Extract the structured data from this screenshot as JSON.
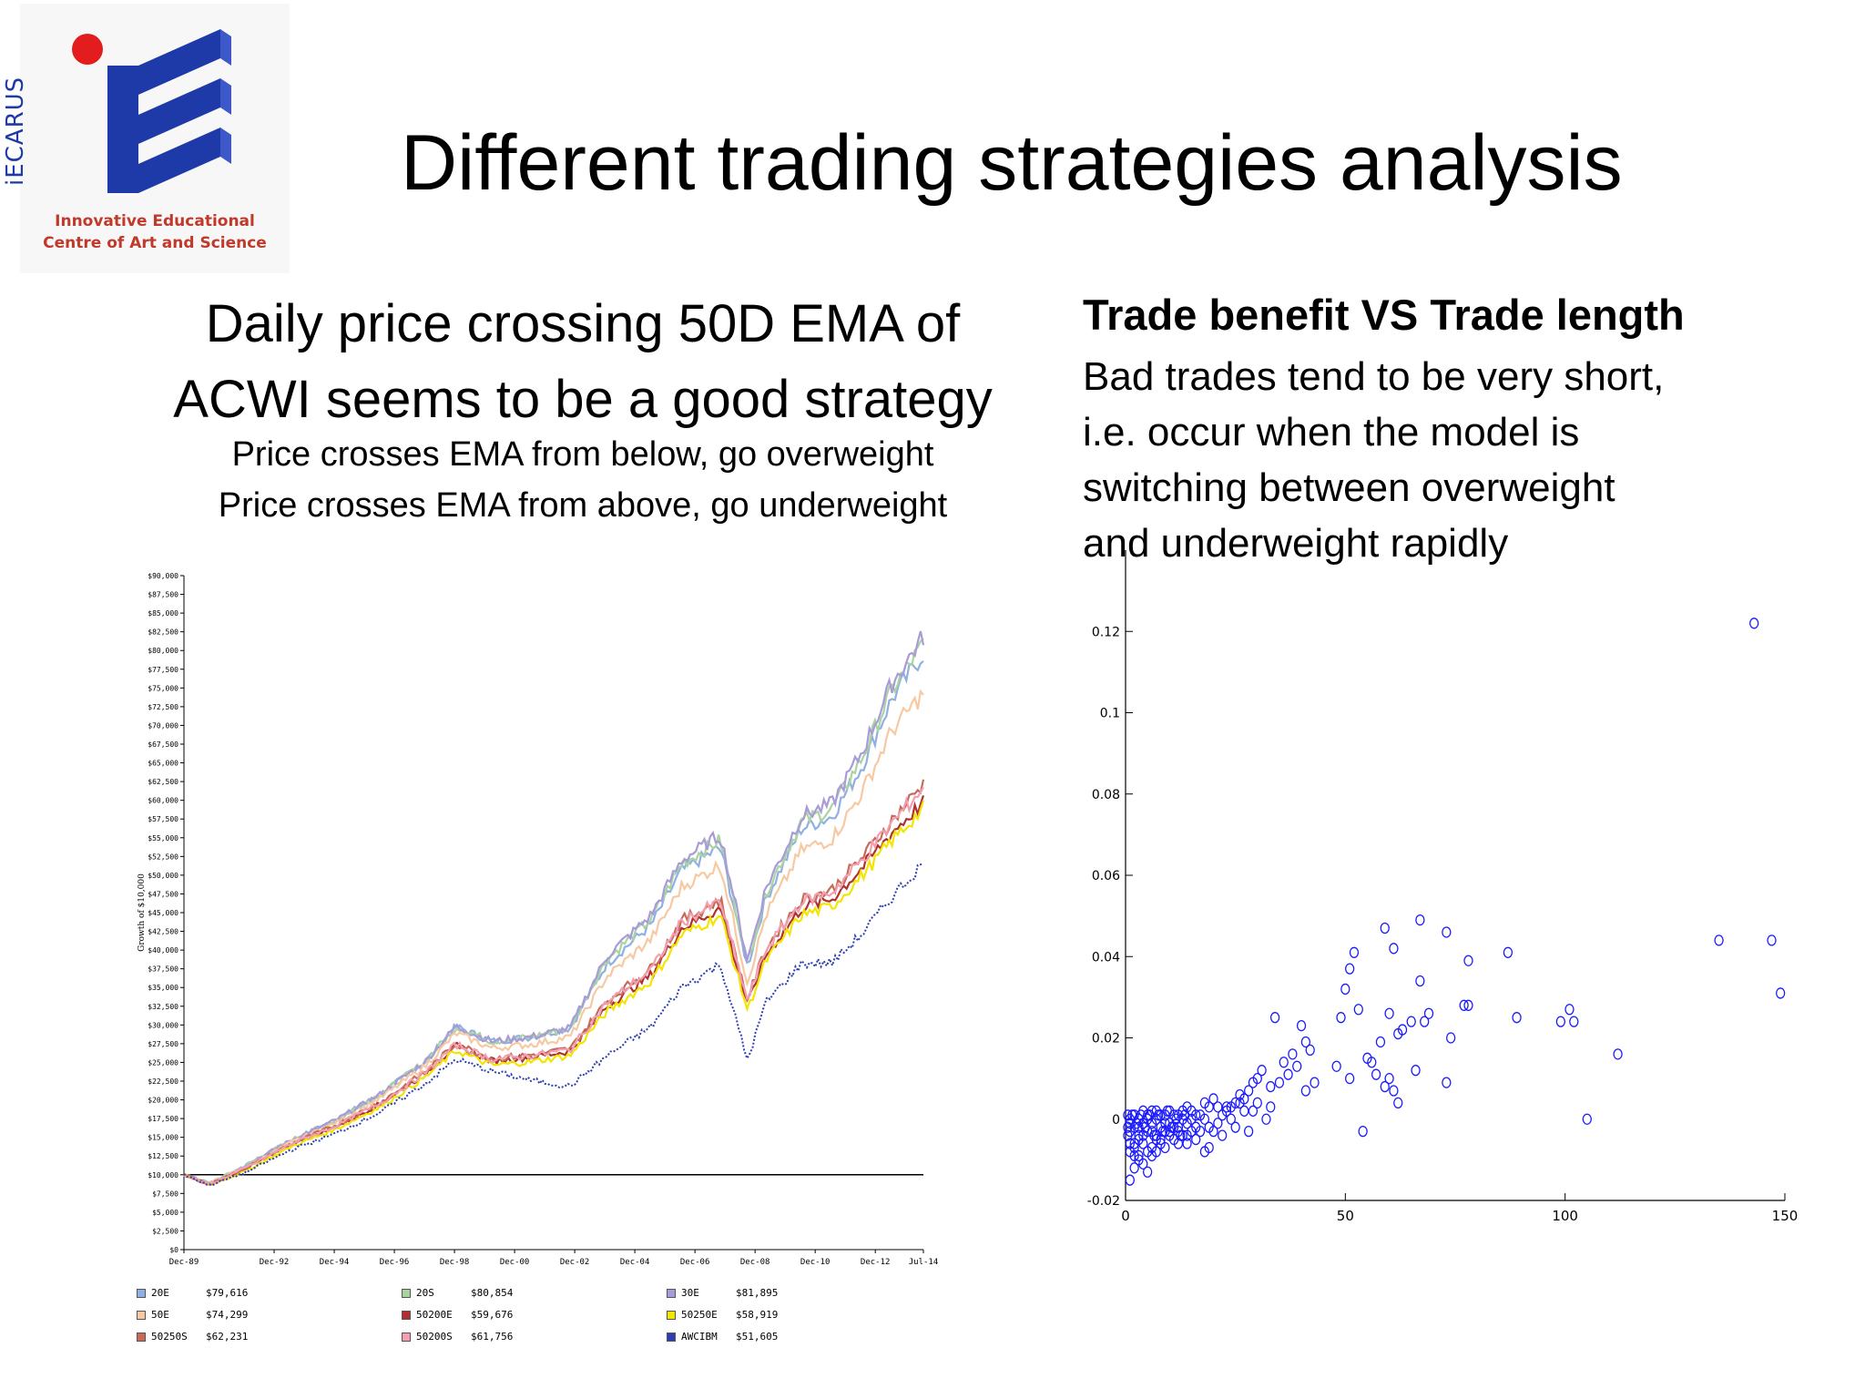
{
  "logo": {
    "word": "iECARUS",
    "line1": "Innovative Educational",
    "line2": "Centre of Art and Science"
  },
  "title": "Different trading strategies analysis",
  "left": {
    "heading_line1": "Daily price crossing 50D EMA of",
    "heading_line2": "ACWI seems to be a good strategy",
    "rule1": "Price crosses EMA from below, go overweight",
    "rule2": "Price crosses EMA from above, go underweight"
  },
  "right": {
    "heading": "Trade benefit VS Trade length",
    "body_lines": [
      "Bad trades tend to be very short,",
      "i.e. occur when the model is",
      "switching between overweight",
      "and underweight rapidly"
    ]
  },
  "colors": {
    "logo_blue": "#1e3aa8",
    "logo_red": "#c0392b",
    "scatter_marker": "#1a1aff"
  },
  "chart_data": [
    {
      "type": "line",
      "ylabel": "Growth of $10,000",
      "ylim": [
        0,
        90000
      ],
      "y_ticks": [
        "$0",
        "$2,500",
        "$5,000",
        "$7,500",
        "$10,000",
        "$12,500",
        "$15,000",
        "$17,500",
        "$20,000",
        "$22,500",
        "$25,000",
        "$27,500",
        "$30,000",
        "$32,500",
        "$35,000",
        "$37,500",
        "$40,000",
        "$42,500",
        "$45,000",
        "$47,500",
        "$50,000",
        "$52,500",
        "$55,000",
        "$57,500",
        "$60,000",
        "$62,500",
        "$65,000",
        "$67,500",
        "$70,000",
        "$72,500",
        "$75,000",
        "$77,500",
        "$80,000",
        "$82,500",
        "$85,000",
        "$87,500",
        "$90,000"
      ],
      "x_ticks": [
        "Dec-89",
        "Dec-92",
        "Dec-94",
        "Dec-96",
        "Dec-98",
        "Dec-00",
        "Dec-02",
        "Dec-04",
        "Dec-06",
        "Dec-08",
        "Dec-10",
        "Dec-12",
        "Jul-14"
      ],
      "x_tick_years": [
        1989.95,
        1992.95,
        1994.95,
        1996.95,
        1998.95,
        2000.95,
        2002.95,
        2004.95,
        2006.95,
        2008.95,
        2010.95,
        2012.95,
        2014.55
      ],
      "baseline": 10000,
      "anchor_years": [
        1989.95,
        1990.8,
        1992.0,
        1993.5,
        1995.0,
        1996.5,
        1998.0,
        1999.0,
        2000.2,
        2001.5,
        2002.8,
        2004.0,
        2005.5,
        2006.5,
        2007.8,
        2008.7,
        2009.3,
        2010.5,
        2011.5,
        2012.5,
        2013.5,
        2014.55
      ],
      "series": [
        {
          "name": "20E",
          "final": "$79,616",
          "color": "#8fb0e0",
          "values": [
            10000,
            8900,
            11200,
            14600,
            17300,
            20800,
            25200,
            29800,
            27800,
            28400,
            29600,
            38100,
            43400,
            50600,
            53700,
            37800,
            46800,
            56300,
            57800,
            64500,
            73500,
            79616
          ]
        },
        {
          "name": "20S",
          "final": "$80,854",
          "color": "#a9d4a0",
          "values": [
            10000,
            8900,
            11200,
            14600,
            17300,
            20800,
            25200,
            29800,
            27800,
            28400,
            29600,
            38700,
            44200,
            51500,
            54700,
            38200,
            47600,
            57200,
            58800,
            65600,
            74700,
            80854
          ]
        },
        {
          "name": "30E",
          "final": "$81,895",
          "color": "#a99ad8",
          "values": [
            10000,
            8900,
            11200,
            14600,
            17300,
            20800,
            25200,
            29800,
            27800,
            28400,
            29600,
            39100,
            44700,
            52000,
            55400,
            38600,
            48200,
            57900,
            59500,
            66400,
            75600,
            81895
          ]
        },
        {
          "name": "50E",
          "final": "$74,299",
          "color": "#f7c9a3",
          "values": [
            10000,
            8800,
            11000,
            14300,
            16900,
            20300,
            24600,
            28900,
            26900,
            27400,
            28400,
            36400,
            41500,
            48400,
            51400,
            35600,
            44600,
            53400,
            54800,
            61000,
            69300,
            74299
          ]
        },
        {
          "name": "50200E",
          "final": "$59,676",
          "color": "#b03030",
          "values": [
            10000,
            8700,
            10800,
            14000,
            16400,
            19500,
            23600,
            27200,
            25200,
            25700,
            26500,
            32400,
            36700,
            42900,
            45600,
            32700,
            39300,
            45600,
            46800,
            50900,
            55700,
            59676
          ]
        },
        {
          "name": "50250E",
          "final": "$58,919",
          "color": "#f2e600",
          "values": [
            10000,
            8600,
            10500,
            13700,
            16100,
            19100,
            23100,
            26600,
            24600,
            25100,
            25900,
            31700,
            35900,
            42000,
            44600,
            32000,
            38500,
            44700,
            45800,
            49900,
            54600,
            58919
          ]
        },
        {
          "name": "50250S",
          "final": "$62,231",
          "color": "#c86a5a",
          "values": [
            10000,
            8700,
            10900,
            14100,
            16600,
            19700,
            23800,
            27500,
            25500,
            26000,
            26800,
            33100,
            37600,
            43900,
            46700,
            33400,
            40200,
            46800,
            48000,
            52300,
            57300,
            62231
          ]
        },
        {
          "name": "50200S",
          "final": "$61,756",
          "color": "#f2a0b0",
          "values": [
            10000,
            8700,
            10900,
            14100,
            16500,
            19600,
            23700,
            27400,
            25400,
            25900,
            26700,
            32900,
            37400,
            43700,
            46500,
            33200,
            40000,
            46500,
            47700,
            52000,
            56900,
            61756
          ]
        },
        {
          "name": "AWCIBM",
          "final": "$51,605",
          "color": "#2d3fb0",
          "dashed": true,
          "values": [
            10000,
            8600,
            10300,
            13300,
            15500,
            18400,
            22200,
            25400,
            23800,
            22600,
            21800,
            25800,
            29800,
            35000,
            38100,
            25200,
            33000,
            38200,
            38300,
            42100,
            47100,
            51605
          ]
        }
      ]
    },
    {
      "type": "scatter",
      "xlim": [
        0,
        150
      ],
      "ylim": [
        -0.02,
        0.14
      ],
      "x_ticks": [
        0,
        50,
        100,
        150
      ],
      "y_ticks": [
        -0.02,
        0,
        0.02,
        0.04,
        0.06,
        0.08,
        0.1,
        0.12
      ],
      "y_tick_labels": [
        "-0.02",
        "0",
        "0.02",
        "0.04",
        "0.06",
        "0.08",
        "0.1",
        "0.12"
      ],
      "points": [
        [
          143,
          0.122
        ],
        [
          135,
          0.044
        ],
        [
          147,
          0.044
        ],
        [
          149,
          0.031
        ],
        [
          87,
          0.041
        ],
        [
          89,
          0.025
        ],
        [
          101,
          0.027
        ],
        [
          102,
          0.024
        ],
        [
          99,
          0.024
        ],
        [
          112,
          0.016
        ],
        [
          105,
          0
        ],
        [
          59,
          0.047
        ],
        [
          61,
          0.042
        ],
        [
          67,
          0.049
        ],
        [
          73,
          0.046
        ],
        [
          78,
          0.039
        ],
        [
          52,
          0.041
        ],
        [
          51,
          0.037
        ],
        [
          67,
          0.034
        ],
        [
          77,
          0.028
        ],
        [
          78,
          0.028
        ],
        [
          74,
          0.02
        ],
        [
          73,
          0.009
        ],
        [
          50,
          0.032
        ],
        [
          53,
          0.027
        ],
        [
          49,
          0.025
        ],
        [
          60,
          0.026
        ],
        [
          62,
          0.021
        ],
        [
          63,
          0.022
        ],
        [
          65,
          0.024
        ],
        [
          68,
          0.024
        ],
        [
          69,
          0.026
        ],
        [
          58,
          0.019
        ],
        [
          55,
          0.015
        ],
        [
          56,
          0.014
        ],
        [
          57,
          0.011
        ],
        [
          59,
          0.008
        ],
        [
          60,
          0.01
        ],
        [
          61,
          0.007
        ],
        [
          62,
          0.004
        ],
        [
          66,
          0.012
        ],
        [
          54,
          -0.003
        ],
        [
          48,
          0.013
        ],
        [
          51,
          0.01
        ],
        [
          34,
          0.025
        ],
        [
          40,
          0.023
        ],
        [
          41,
          0.019
        ],
        [
          42,
          0.017
        ],
        [
          38,
          0.016
        ],
        [
          39,
          0.013
        ],
        [
          36,
          0.014
        ],
        [
          37,
          0.011
        ],
        [
          35,
          0.009
        ],
        [
          33,
          0.008
        ],
        [
          30,
          0.01
        ],
        [
          31,
          0.012
        ],
        [
          29,
          0.009
        ],
        [
          28,
          0.007
        ],
        [
          27,
          0.005
        ],
        [
          26,
          0.006
        ],
        [
          25,
          0.004
        ],
        [
          24,
          0.003
        ],
        [
          23,
          0.002
        ],
        [
          22,
          0.001
        ],
        [
          21,
          -0.001
        ],
        [
          20,
          0.005
        ],
        [
          19,
          0.003
        ],
        [
          18,
          0.004
        ],
        [
          17,
          0.001
        ],
        [
          16,
          -0.002
        ],
        [
          15,
          0.002
        ],
        [
          14,
          0.003
        ],
        [
          13,
          0.0
        ],
        [
          12,
          -0.002
        ],
        [
          11,
          0.001
        ],
        [
          10,
          0.002
        ],
        [
          9,
          -0.001
        ],
        [
          8,
          0.001
        ],
        [
          7,
          0.002
        ],
        [
          6,
          -0.003
        ],
        [
          5,
          0.0
        ],
        [
          4,
          -0.004
        ],
        [
          3,
          -0.002
        ],
        [
          2,
          -0.006
        ],
        [
          1,
          -0.001
        ],
        [
          41,
          0.007
        ],
        [
          43,
          0.009
        ],
        [
          32,
          0.0
        ],
        [
          29,
          0.002
        ],
        [
          26,
          0.004
        ],
        [
          23,
          0.003
        ],
        [
          20,
          -0.003
        ],
        [
          18,
          -0.008
        ],
        [
          19,
          -0.007
        ],
        [
          16,
          -0.005
        ],
        [
          14,
          -0.004
        ],
        [
          12,
          -0.006
        ],
        [
          10,
          -0.003
        ],
        [
          9,
          -0.007
        ],
        [
          7,
          -0.005
        ],
        [
          6,
          -0.009
        ],
        [
          5,
          -0.008
        ],
        [
          4,
          -0.011
        ],
        [
          3,
          -0.009
        ],
        [
          2,
          -0.012
        ],
        [
          1,
          -0.015
        ],
        [
          5,
          -0.013
        ],
        [
          1,
          0.0
        ],
        [
          2,
          0.001
        ],
        [
          3,
          0.0
        ],
        [
          4,
          0.002
        ],
        [
          5,
          0.001
        ],
        [
          6,
          0.002
        ],
        [
          7,
          0.0
        ],
        [
          8,
          -0.002
        ],
        [
          9,
          0.001
        ],
        [
          10,
          -0.001
        ],
        [
          11,
          -0.002
        ],
        [
          12,
          0.001
        ],
        [
          13,
          0.002
        ],
        [
          14,
          -0.001
        ],
        [
          15,
          0.0
        ],
        [
          1,
          -0.003
        ],
        [
          2,
          -0.002
        ],
        [
          3,
          -0.004
        ],
        [
          4,
          -0.001
        ],
        [
          5,
          -0.003
        ],
        [
          6,
          -0.001
        ],
        [
          7,
          -0.004
        ],
        [
          8,
          -0.005
        ],
        [
          9,
          -0.003
        ],
        [
          10,
          -0.004
        ],
        [
          11,
          -0.005
        ],
        [
          12,
          -0.003
        ],
        [
          13,
          -0.004
        ],
        [
          14,
          -0.006
        ],
        [
          15,
          -0.003
        ],
        [
          1,
          -0.006
        ],
        [
          2,
          -0.007
        ],
        [
          3,
          -0.005
        ],
        [
          4,
          -0.006
        ],
        [
          6,
          -0.007
        ],
        [
          7,
          -0.008
        ],
        [
          8,
          -0.006
        ],
        [
          1,
          -0.008
        ],
        [
          2,
          -0.009
        ],
        [
          3,
          -0.01
        ],
        [
          0.5,
          -0.004
        ],
        [
          0.5,
          -0.002
        ],
        [
          0.5,
          0.001
        ],
        [
          1.5,
          0.001
        ],
        [
          2.5,
          -0.001
        ],
        [
          3.5,
          0.001
        ],
        [
          4.5,
          -0.002
        ],
        [
          5.5,
          0.001
        ],
        [
          6.5,
          -0.004
        ],
        [
          7.5,
          0.001
        ],
        [
          8.5,
          -0.003
        ],
        [
          9.5,
          0.002
        ],
        [
          10.5,
          -0.002
        ],
        [
          11.5,
          0.0
        ],
        [
          12.5,
          -0.004
        ],
        [
          13.5,
          0.001
        ],
        [
          16,
          0.001
        ],
        [
          17,
          -0.003
        ],
        [
          18,
          0.0
        ],
        [
          19,
          -0.002
        ],
        [
          21,
          0.003
        ],
        [
          22,
          -0.004
        ],
        [
          24,
          0.0
        ],
        [
          25,
          -0.002
        ],
        [
          27,
          0.002
        ],
        [
          28,
          -0.003
        ],
        [
          30,
          0.004
        ],
        [
          33,
          0.003
        ]
      ]
    }
  ]
}
